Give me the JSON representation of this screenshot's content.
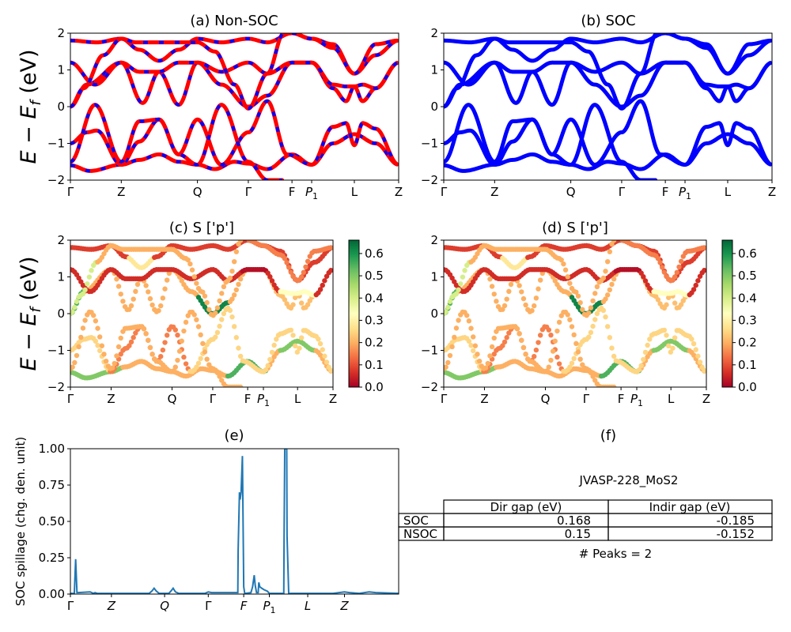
{
  "chart_data": [
    {
      "panel": "a",
      "type": "line",
      "title": "(a) Non-SOC",
      "ylabel": "E − E_f (eV)",
      "ylabel_main": "E − E",
      "ylabel_sub": "f",
      "ylabel_unit": " (eV)",
      "ylim": [
        -2,
        2
      ],
      "yticks": [
        "−2",
        "−1",
        "0",
        "1",
        "2"
      ],
      "ytick_values": [
        -2,
        -1,
        0,
        1,
        2
      ],
      "xlim": [
        0,
        1
      ],
      "xticks": [
        {
          "label": "Γ",
          "x": 0.0
        },
        {
          "label": "Z",
          "x": 0.155
        },
        {
          "label": "Q",
          "x": 0.387
        },
        {
          "label": "Γ",
          "x": 0.542
        },
        {
          "label": "F",
          "x": 0.675
        },
        {
          "label": "P",
          "sub": "1",
          "x": 0.735
        },
        {
          "label": "L",
          "x": 0.865
        },
        {
          "label": "Z",
          "x": 1.0
        }
      ],
      "style": {
        "line_color": "#ff0000",
        "dash_color": "#0000ff"
      },
      "series": [
        {
          "name": "band1",
          "x": [
            0,
            0.06,
            0.155,
            0.21,
            0.27,
            0.33,
            0.387,
            0.44,
            0.5,
            0.542,
            0.6,
            0.675,
            0.735,
            0.8,
            0.865,
            0.93,
            1.0
          ],
          "y": [
            -1.6,
            -1.75,
            -1.58,
            -1.45,
            -1.3,
            -1.5,
            -1.58,
            -1.7,
            -1.5,
            -1.55,
            -1.7,
            -1.3,
            -1.58,
            -1.0,
            -0.75,
            -1.0,
            -1.58
          ]
        },
        {
          "name": "band2",
          "x": [
            0,
            0.05,
            0.08,
            0.155,
            0.21,
            0.27,
            0.33,
            0.387,
            0.46,
            0.542,
            0.6,
            0.66,
            0.735,
            0.8,
            0.84,
            0.865,
            0.89,
            0.93,
            1.0
          ],
          "y": [
            -1.0,
            -0.7,
            -0.65,
            -1.58,
            -0.95,
            -0.35,
            -1.3,
            -0.35,
            -1.58,
            -0.7,
            0.15,
            -1.3,
            -1.58,
            -0.55,
            -0.45,
            -1.05,
            -0.45,
            -0.6,
            -1.58
          ]
        },
        {
          "name": "band3",
          "x": [
            0,
            0.075,
            0.155,
            0.21,
            0.27,
            0.33,
            0.387,
            0.46,
            0.542,
            0.6,
            0.65
          ],
          "y": [
            -1.5,
            0.05,
            -1.5,
            -0.4,
            -0.35,
            -1.3,
            -1.58,
            0.05,
            -1.5,
            -2.0,
            -2.0
          ]
        },
        {
          "name": "band4",
          "x": [
            0,
            0.05,
            0.155,
            0.22,
            0.27,
            0.33,
            0.387,
            0.46,
            0.542,
            0.6,
            0.675,
            0.735,
            0.8,
            0.84,
            0.865,
            0.89,
            0.93,
            1.0
          ],
          "y": [
            0.0,
            0.6,
            1.2,
            0.1,
            0.95,
            0.05,
            1.2,
            0.6,
            0.0,
            0.3,
            1.2,
            1.2,
            0.5,
            0.15,
            0.55,
            0.15,
            0.5,
            1.2
          ]
        },
        {
          "name": "band5",
          "x": [
            0,
            0.075,
            0.155,
            0.21,
            0.27,
            0.33,
            0.387,
            0.46,
            0.542,
            0.6,
            0.675,
            0.735,
            0.8,
            0.84,
            0.865,
            0.89,
            0.93,
            1.0
          ],
          "y": [
            1.2,
            0.6,
            1.2,
            0.95,
            0.95,
            1.2,
            1.2,
            0.95,
            1.2,
            0.9,
            1.2,
            1.2,
            0.6,
            0.55,
            0.55,
            0.6,
            0.5,
            1.2
          ]
        },
        {
          "name": "band6",
          "x": [
            0,
            0.08,
            0.155,
            0.21,
            0.27,
            0.33,
            0.387,
            0.46,
            0.542,
            0.6,
            0.675,
            0.735,
            0.8,
            0.865,
            0.93,
            1.0
          ],
          "y": [
            1.8,
            1.75,
            1.85,
            1.55,
            1.25,
            1.55,
            1.85,
            1.75,
            1.85,
            1.75,
            2.0,
            1.85,
            1.7,
            0.9,
            1.4,
            1.8
          ]
        },
        {
          "name": "band7",
          "x": [
            0,
            0.04,
            0.1,
            0.155,
            0.2,
            0.387,
            0.44,
            0.5,
            0.542,
            0.6,
            0.65
          ],
          "y": [
            0.0,
            0.5,
            1.4,
            1.85,
            1.75,
            1.75,
            1.5,
            0.6,
            -0.05,
            0.9,
            2.0
          ]
        },
        {
          "name": "band8",
          "x": [
            0.675,
            0.735,
            0.8,
            0.865,
            0.93,
            1.0
          ],
          "y": [
            2.0,
            1.85,
            1.6,
            0.9,
            1.7,
            1.8
          ]
        }
      ]
    },
    {
      "panel": "b",
      "type": "line",
      "title": "(b) SOC",
      "ylim": [
        -2,
        2
      ],
      "yticks": [
        "−2",
        "−1",
        "0",
        "1",
        "2"
      ],
      "ytick_values": [
        -2,
        -1,
        0,
        1,
        2
      ],
      "xlim": [
        0,
        1
      ],
      "xticks": [
        {
          "label": "Γ",
          "x": 0.0
        },
        {
          "label": "Z",
          "x": 0.155
        },
        {
          "label": "Q",
          "x": 0.387
        },
        {
          "label": "Γ",
          "x": 0.542
        },
        {
          "label": "F",
          "x": 0.675
        },
        {
          "label": "P",
          "sub": "1",
          "x": 0.735
        },
        {
          "label": "L",
          "x": 0.865
        },
        {
          "label": "Z",
          "x": 1.0
        }
      ],
      "style": {
        "line_color": "#0000ff"
      }
    },
    {
      "panel": "c",
      "type": "scatter",
      "title": "(c)  S ['p']",
      "ylim": [
        -2,
        2
      ],
      "yticks": [
        "−2",
        "−1",
        "0",
        "1",
        "2"
      ],
      "ytick_values": [
        -2,
        -1,
        0,
        1,
        2
      ],
      "colorbar": {
        "ticks": [
          "0.0",
          "0.1",
          "0.2",
          "0.3",
          "0.4",
          "0.5",
          "0.6"
        ],
        "tick_values": [
          0.0,
          0.1,
          0.2,
          0.3,
          0.4,
          0.5,
          0.6
        ],
        "range": [
          0.0,
          0.66
        ],
        "colormap": "RdYlGn"
      },
      "xticks": [
        {
          "label": "Γ",
          "x": 0.0
        },
        {
          "label": "Z",
          "x": 0.155
        },
        {
          "label": "Q",
          "x": 0.387
        },
        {
          "label": "Γ",
          "x": 0.542
        },
        {
          "label": "F",
          "x": 0.675
        },
        {
          "label": "P",
          "sub": "1",
          "x": 0.735
        },
        {
          "label": "L",
          "x": 0.865
        },
        {
          "label": "Z",
          "x": 1.0
        }
      ]
    },
    {
      "panel": "d",
      "type": "scatter",
      "title": "(d) S ['p']",
      "ylim": [
        -2,
        2
      ],
      "yticks": [
        "−2",
        "−1",
        "0",
        "1",
        "2"
      ],
      "ytick_values": [
        -2,
        -1,
        0,
        1,
        2
      ],
      "colorbar": {
        "ticks": [
          "0.0",
          "0.1",
          "0.2",
          "0.3",
          "0.4",
          "0.5",
          "0.6"
        ],
        "tick_values": [
          0.0,
          0.1,
          0.2,
          0.3,
          0.4,
          0.5,
          0.6
        ],
        "range": [
          0.0,
          0.66
        ],
        "colormap": "RdYlGn"
      },
      "xticks": [
        {
          "label": "Γ",
          "x": 0.0
        },
        {
          "label": "Z",
          "x": 0.155
        },
        {
          "label": "Q",
          "x": 0.387
        },
        {
          "label": "Γ",
          "x": 0.542
        },
        {
          "label": "F",
          "x": 0.675
        },
        {
          "label": "P",
          "sub": "1",
          "x": 0.735
        },
        {
          "label": "L",
          "x": 0.865
        },
        {
          "label": "Z",
          "x": 1.0
        }
      ]
    },
    {
      "panel": "e",
      "type": "line",
      "title": "(e)",
      "ylabel": "SOC spillage (chg. den. unit)",
      "ylim": [
        0,
        1.0
      ],
      "yticks": [
        "0.00",
        "0.25",
        "0.50",
        "0.75",
        "1.00"
      ],
      "ytick_values": [
        0,
        0.25,
        0.5,
        0.75,
        1.0
      ],
      "xlim": [
        0,
        1
      ],
      "xticks": [
        {
          "label": "Γ",
          "x": 0.0
        },
        {
          "label": "Z",
          "x": 0.125
        },
        {
          "label": "Q",
          "x": 0.287
        },
        {
          "label": "Γ",
          "x": 0.42
        },
        {
          "label": "F",
          "x": 0.528
        },
        {
          "label": "P",
          "sub": "1",
          "x": 0.606
        },
        {
          "label": "L",
          "x": 0.723
        },
        {
          "label": "Z",
          "x": 0.835
        }
      ],
      "line_color": "#1f77b4",
      "series": [
        {
          "name": "spillage",
          "x": [
            0,
            0.012,
            0.016,
            0.02,
            0.024,
            0.06,
            0.07,
            0.075,
            0.082,
            0.09,
            0.24,
            0.248,
            0.255,
            0.262,
            0.27,
            0.3,
            0.306,
            0.313,
            0.32,
            0.33,
            0.41,
            0.42,
            0.43,
            0.51,
            0.511,
            0.515,
            0.517,
            0.52,
            0.524,
            0.528,
            0.531,
            0.533,
            0.55,
            0.555,
            0.56,
            0.563,
            0.567,
            0.572,
            0.574,
            0.577,
            0.583,
            0.59,
            0.6,
            0.606,
            0.61,
            0.65,
            0.651,
            0.653,
            0.659,
            0.66,
            0.665,
            0.666,
            0.7,
            0.8,
            0.835,
            0.85,
            0.88,
            0.91,
            0.93,
            1.0
          ],
          "y": [
            0.005,
            0.005,
            0.24,
            0.01,
            0.01,
            0.015,
            0.005,
            0.01,
            0.005,
            0.005,
            0.005,
            0.02,
            0.04,
            0.02,
            0.005,
            0.005,
            0.02,
            0.04,
            0.015,
            0.005,
            0.005,
            0.015,
            0.01,
            0.01,
            0.3,
            0.7,
            0.65,
            0.7,
            0.95,
            0.05,
            0.005,
            0.005,
            0.01,
            0.05,
            0.13,
            0.06,
            0.01,
            0.01,
            0.08,
            0.05,
            0.04,
            0.03,
            0.02,
            0.005,
            0.005,
            0.005,
            0.4,
            1.0,
            1.0,
            0.4,
            0.005,
            0.005,
            0.005,
            0.005,
            0.015,
            0.01,
            0.005,
            0.015,
            0.01,
            0.005
          ]
        }
      ]
    }
  ],
  "panel_f": {
    "title": "(f)",
    "material": "JVASP-228_MoS2",
    "table": {
      "columns": [
        "Dir gap (eV)",
        "Indir gap (eV)"
      ],
      "rows": [
        {
          "label": "SOC",
          "values": [
            "0.168",
            "-0.185"
          ]
        },
        {
          "label": "NSOC",
          "values": [
            "0.15",
            "-0.152"
          ]
        }
      ]
    },
    "peaks_text": "# Peaks = 2"
  }
}
